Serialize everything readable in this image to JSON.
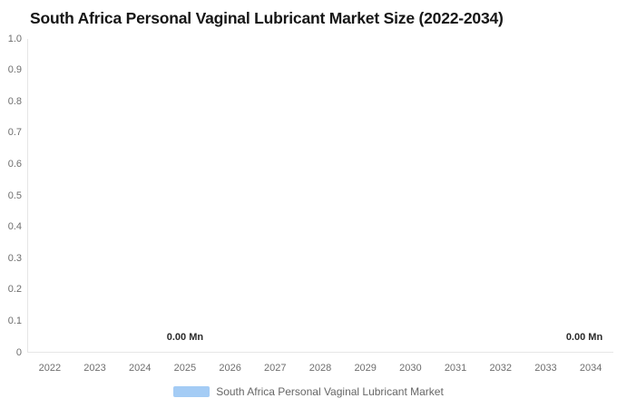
{
  "title": "South Africa Personal Vaginal Lubricant Market Size (2022-2034)",
  "legend": {
    "label": "South Africa Personal Vaginal Lubricant Market",
    "swatch_color": "#a4ccf5"
  },
  "colors": {
    "title_text": "#161616",
    "axis_line": "#e6e6e6",
    "tick_label_text": "#6e6e6e",
    "data_label_text": "#2b2b2b",
    "legend_text": "#666666",
    "series_color": "#a4ccf5",
    "background": "#ffffff"
  },
  "chart_data": {
    "type": "bar",
    "title": "South Africa Personal Vaginal Lubricant Market Size (2022-2034)",
    "categories": [
      "2022",
      "2023",
      "2024",
      "2025",
      "2026",
      "2027",
      "2028",
      "2029",
      "2030",
      "2031",
      "2032",
      "2033",
      "2034"
    ],
    "series": [
      {
        "name": "South Africa Personal Vaginal Lubricant Market",
        "unit": "Mn",
        "values": [
          0,
          0,
          0,
          0,
          0,
          0,
          0,
          0,
          0,
          0,
          0,
          0,
          0
        ],
        "color": "#a4ccf5"
      }
    ],
    "data_labels": [
      {
        "category": "2025",
        "text": "0.00 Mn"
      },
      {
        "category": "2034",
        "text": "0.00 Mn"
      }
    ],
    "y_ticks": [
      "1.0",
      "0.9",
      "0.8",
      "0.7",
      "0.6",
      "0.5",
      "0.4",
      "0.3",
      "0.2",
      "0.1",
      "0"
    ],
    "ylim": [
      0,
      1.0
    ],
    "xlabel": "",
    "ylabel": "",
    "grid": false,
    "legend_position": "bottom-center"
  }
}
